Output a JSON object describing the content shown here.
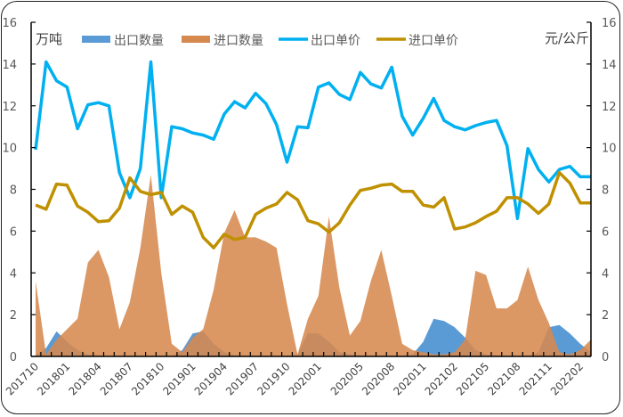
{
  "chart_data": {
    "type": "area+line (dual axis)",
    "title": "",
    "left_axis": {
      "label": "万吨",
      "ticks": [
        "0",
        "2",
        "4",
        "6",
        "8",
        "10",
        "12",
        "14",
        "16"
      ],
      "ylim": [
        0,
        16
      ]
    },
    "right_axis": {
      "label": "元/公斤",
      "ticks": [
        "0",
        "2",
        "4",
        "6",
        "8",
        "10",
        "12",
        "14",
        "16"
      ],
      "ylim": [
        0,
        16
      ]
    },
    "x_tick_labels": [
      "201710",
      "201801",
      "201804",
      "201807",
      "201810",
      "201901",
      "201904",
      "201907",
      "201910",
      "202001",
      "202005",
      "202008",
      "202011",
      "202102",
      "202105",
      "202108",
      "202111",
      "202202"
    ],
    "x": [
      "201710",
      "201711",
      "201712",
      "201801",
      "201802",
      "201803",
      "201804",
      "201805",
      "201806",
      "201807",
      "201808",
      "201809",
      "201810",
      "201811",
      "201812",
      "201901",
      "201902",
      "201903",
      "201904",
      "201905",
      "201906",
      "201907",
      "201908",
      "201909",
      "201910",
      "201911",
      "201912",
      "202001",
      "202002",
      "202003",
      "202004",
      "202005",
      "202006",
      "202007",
      "202008",
      "202009",
      "202010",
      "202011",
      "202012",
      "202101",
      "202102",
      "202103",
      "202104",
      "202105",
      "202106",
      "202107",
      "202108",
      "202109",
      "202110",
      "202111",
      "202112",
      "202201",
      "202202",
      "202203"
    ],
    "legend": [
      "出口数量",
      "进口数量",
      "出口单价",
      "进口单价"
    ],
    "series": [
      {
        "name": "出口数量",
        "type": "area",
        "axis": "left",
        "color": "#5B9BD5",
        "values": [
          0.05,
          0.4,
          1.2,
          0.7,
          0.3,
          0.1,
          0.05,
          0.0,
          0.0,
          0.0,
          0.0,
          0.0,
          0.0,
          0.0,
          0.3,
          1.1,
          1.2,
          0.6,
          0.2,
          0.05,
          0.0,
          0.0,
          0.0,
          0.0,
          0.0,
          0.1,
          1.1,
          1.1,
          0.7,
          0.2,
          0.1,
          0.05,
          0.0,
          0.0,
          0.0,
          0.0,
          0.1,
          0.7,
          1.8,
          1.7,
          1.4,
          0.9,
          0.3,
          0.1,
          0.05,
          0.0,
          0.0,
          0.0,
          0.2,
          1.4,
          1.5,
          1.1,
          0.6,
          0.2
        ]
      },
      {
        "name": "进口数量",
        "type": "area",
        "axis": "left",
        "color": "#D6894F",
        "values": [
          3.6,
          0.1,
          0.8,
          1.3,
          1.8,
          4.5,
          5.1,
          3.8,
          1.3,
          2.6,
          5.2,
          8.7,
          4.0,
          0.6,
          0.2,
          0.9,
          1.3,
          3.2,
          5.9,
          7.0,
          5.7,
          5.7,
          5.5,
          5.2,
          2.5,
          0.1,
          1.8,
          2.9,
          6.7,
          3.3,
          1.0,
          1.7,
          3.6,
          5.1,
          2.9,
          0.6,
          0.3,
          0.2,
          0.1,
          0.1,
          0.2,
          0.8,
          4.1,
          3.9,
          2.3,
          2.3,
          2.7,
          4.3,
          2.7,
          1.6,
          0.2,
          0.1,
          0.3,
          0.8
        ]
      },
      {
        "name": "出口单价",
        "type": "line",
        "axis": "right",
        "color": "#00B0F0",
        "values": [
          9.9,
          14.1,
          13.2,
          12.9,
          10.9,
          12.05,
          12.15,
          12.0,
          8.8,
          7.6,
          9.0,
          14.1,
          7.6,
          11.0,
          10.9,
          10.7,
          10.6,
          10.4,
          11.6,
          12.2,
          11.9,
          12.6,
          12.1,
          11.1,
          9.3,
          11.0,
          10.95,
          12.9,
          13.1,
          12.55,
          12.3,
          13.6,
          13.05,
          12.85,
          13.85,
          11.5,
          10.6,
          11.4,
          12.35,
          11.3,
          11.0,
          10.85,
          11.05,
          11.2,
          11.3,
          10.1,
          6.6,
          9.95,
          8.95,
          8.35,
          8.95,
          9.1,
          8.6,
          8.6
        ]
      },
      {
        "name": "进口单价",
        "type": "line",
        "axis": "right",
        "color": "#BF9000",
        "values": [
          7.25,
          7.05,
          8.25,
          8.2,
          7.2,
          6.9,
          6.45,
          6.5,
          7.1,
          8.55,
          7.9,
          7.75,
          7.85,
          6.8,
          7.2,
          6.9,
          5.7,
          5.2,
          5.85,
          5.6,
          5.7,
          6.8,
          7.1,
          7.3,
          7.85,
          7.5,
          6.5,
          6.35,
          5.95,
          6.4,
          7.25,
          7.95,
          8.05,
          8.2,
          8.25,
          7.9,
          7.9,
          7.25,
          7.15,
          7.6,
          6.1,
          6.2,
          6.4,
          6.7,
          6.95,
          7.6,
          7.6,
          7.3,
          6.85,
          7.3,
          8.8,
          8.3,
          7.35,
          7.35
        ]
      }
    ],
    "grid": false,
    "legend_position": "top"
  },
  "labels": {
    "left_unit": "万吨",
    "right_unit": "元/公斤"
  }
}
